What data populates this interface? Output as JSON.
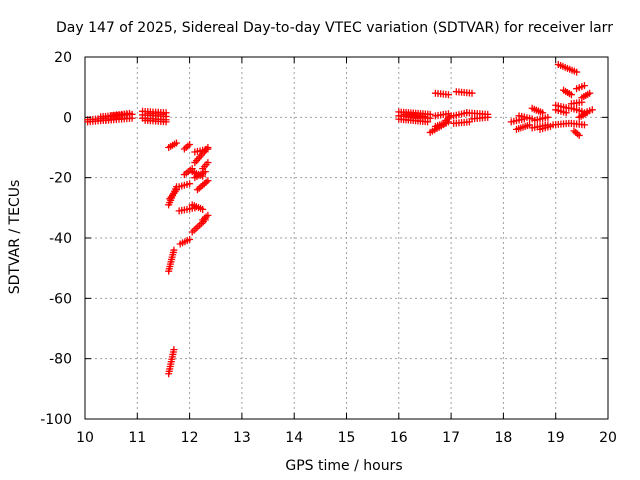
{
  "chart_data": {
    "type": "scatter",
    "title": "Day 147 of 2025, Sidereal Day-to-day VTEC variation (SDTVAR) for receiver larr",
    "xlabel": "GPS time / hours",
    "ylabel": "SDTVAR / TECUs",
    "xlim": [
      10,
      20
    ],
    "ylim": [
      -100,
      20
    ],
    "xticks": [
      10,
      11,
      12,
      13,
      14,
      15,
      16,
      17,
      18,
      19,
      20
    ],
    "yticks": [
      -100,
      -80,
      -60,
      -40,
      -20,
      0,
      20
    ],
    "xtick_labels": [
      "10",
      "11",
      "12",
      "13",
      "14",
      "15",
      "16",
      "17",
      "18",
      "19",
      "20"
    ],
    "ytick_labels": [
      "-100",
      "-80",
      "-60",
      "-40",
      "-20",
      "0",
      "20"
    ],
    "grid": true,
    "marker": "+",
    "color": "#ff0000",
    "segments": [
      {
        "x0": 10.05,
        "x1": 10.4,
        "y0": -0.8,
        "y1": -0.3
      },
      {
        "x0": 10.05,
        "x1": 10.5,
        "y0": -1.5,
        "y1": -0.8
      },
      {
        "x0": 10.3,
        "x1": 10.9,
        "y0": 0.2,
        "y1": 1.0
      },
      {
        "x0": 10.4,
        "x1": 10.9,
        "y0": -1.0,
        "y1": -0.3
      },
      {
        "x0": 10.5,
        "x1": 10.85,
        "y0": 0.6,
        "y1": 1.3
      },
      {
        "x0": 11.1,
        "x1": 11.55,
        "y0": 2.0,
        "y1": 1.5
      },
      {
        "x0": 11.1,
        "x1": 11.55,
        "y0": 0.8,
        "y1": 0.3
      },
      {
        "x0": 11.1,
        "x1": 11.55,
        "y0": -0.3,
        "y1": -0.8
      },
      {
        "x0": 11.15,
        "x1": 11.55,
        "y0": -1.0,
        "y1": -1.5
      },
      {
        "x0": 11.2,
        "x1": 11.5,
        "y0": 1.3,
        "y1": 1.0
      },
      {
        "x0": 11.6,
        "x1": 11.75,
        "y0": -10.0,
        "y1": -8.5
      },
      {
        "x0": 11.6,
        "x1": 11.7,
        "y0": -85.0,
        "y1": -77.0
      },
      {
        "x0": 11.6,
        "x1": 11.7,
        "y0": -51.0,
        "y1": -44.0
      },
      {
        "x0": 11.6,
        "x1": 11.75,
        "y0": -29.0,
        "y1": -23.0
      },
      {
        "x0": 11.62,
        "x1": 11.75,
        "y0": -27.0,
        "y1": -24.0
      },
      {
        "x0": 11.8,
        "x1": 12.0,
        "y0": -23.0,
        "y1": -22.0
      },
      {
        "x0": 11.8,
        "x1": 12.1,
        "y0": -31.0,
        "y1": -30.0
      },
      {
        "x0": 11.82,
        "x1": 12.0,
        "y0": -42.0,
        "y1": -40.5
      },
      {
        "x0": 11.9,
        "x1": 12.0,
        "y0": -10.5,
        "y1": -9.0
      },
      {
        "x0": 11.9,
        "x1": 12.05,
        "y0": -19.0,
        "y1": -17.0
      },
      {
        "x0": 12.05,
        "x1": 12.25,
        "y0": -18.0,
        "y1": -19.5
      },
      {
        "x0": 12.05,
        "x1": 12.25,
        "y0": -29.0,
        "y1": -30.5
      },
      {
        "x0": 12.05,
        "x1": 12.3,
        "y0": -38.0,
        "y1": -34.0
      },
      {
        "x0": 12.1,
        "x1": 12.35,
        "y0": -11.5,
        "y1": -10.5
      },
      {
        "x0": 12.1,
        "x1": 12.35,
        "y0": -15.0,
        "y1": -10.0
      },
      {
        "x0": 12.1,
        "x1": 12.3,
        "y0": -20.0,
        "y1": -18.0
      },
      {
        "x0": 12.15,
        "x1": 12.35,
        "y0": -24.0,
        "y1": -21.0
      },
      {
        "x0": 12.25,
        "x1": 12.35,
        "y0": -34.0,
        "y1": -32.5
      },
      {
        "x0": 12.25,
        "x1": 12.35,
        "y0": -17.0,
        "y1": -15.0
      },
      {
        "x0": 16.0,
        "x1": 16.6,
        "y0": 1.8,
        "y1": 1.0
      },
      {
        "x0": 16.0,
        "x1": 16.6,
        "y0": 0.5,
        "y1": -0.3
      },
      {
        "x0": 16.0,
        "x1": 16.55,
        "y0": -0.6,
        "y1": -1.5
      },
      {
        "x0": 16.1,
        "x1": 16.5,
        "y0": 1.0,
        "y1": 0.3
      },
      {
        "x0": 16.6,
        "x1": 16.9,
        "y0": -5.0,
        "y1": -2.0
      },
      {
        "x0": 16.7,
        "x1": 16.95,
        "y0": -3.0,
        "y1": -1.5
      },
      {
        "x0": 16.7,
        "x1": 16.95,
        "y0": 0.5,
        "y1": 1.2
      },
      {
        "x0": 16.7,
        "x1": 16.95,
        "y0": 8.0,
        "y1": 7.5
      },
      {
        "x0": 16.9,
        "x1": 17.0,
        "y0": -1.0,
        "y1": 0.5
      },
      {
        "x0": 17.05,
        "x1": 17.3,
        "y0": 0.5,
        "y1": 1.5
      },
      {
        "x0": 17.05,
        "x1": 17.35,
        "y0": -2.0,
        "y1": -1.5
      },
      {
        "x0": 17.1,
        "x1": 17.4,
        "y0": 8.5,
        "y1": 8.0
      },
      {
        "x0": 17.3,
        "x1": 17.7,
        "y0": 1.5,
        "y1": 1.0
      },
      {
        "x0": 17.4,
        "x1": 17.7,
        "y0": -0.5,
        "y1": 0.0
      },
      {
        "x0": 18.15,
        "x1": 18.4,
        "y0": -1.5,
        "y1": -0.5
      },
      {
        "x0": 18.25,
        "x1": 18.5,
        "y0": -4.0,
        "y1": -2.5
      },
      {
        "x0": 18.3,
        "x1": 18.55,
        "y0": 0.5,
        "y1": -0.5
      },
      {
        "x0": 18.55,
        "x1": 18.75,
        "y0": 3.0,
        "y1": 1.5
      },
      {
        "x0": 18.55,
        "x1": 18.85,
        "y0": -3.5,
        "y1": -2.5
      },
      {
        "x0": 18.6,
        "x1": 18.85,
        "y0": -1.0,
        "y1": 0.0
      },
      {
        "x0": 18.7,
        "x1": 18.9,
        "y0": -4.0,
        "y1": -3.0
      },
      {
        "x0": 18.95,
        "x1": 19.25,
        "y0": -2.5,
        "y1": -2.0
      },
      {
        "x0": 19.0,
        "x1": 19.2,
        "y0": 2.5,
        "y1": 1.5
      },
      {
        "x0": 19.0,
        "x1": 19.25,
        "y0": 4.0,
        "y1": 3.0
      },
      {
        "x0": 19.05,
        "x1": 19.4,
        "y0": 17.5,
        "y1": 15.0
      },
      {
        "x0": 19.15,
        "x1": 19.3,
        "y0": 9.0,
        "y1": 7.5
      },
      {
        "x0": 19.3,
        "x1": 19.55,
        "y0": -2.0,
        "y1": -2.5
      },
      {
        "x0": 19.3,
        "x1": 19.5,
        "y0": 3.0,
        "y1": 2.0
      },
      {
        "x0": 19.3,
        "x1": 19.5,
        "y0": 4.5,
        "y1": 5.0
      },
      {
        "x0": 19.35,
        "x1": 19.45,
        "y0": -4.5,
        "y1": -6.0
      },
      {
        "x0": 19.4,
        "x1": 19.55,
        "y0": 9.5,
        "y1": 10.5
      },
      {
        "x0": 19.45,
        "x1": 19.6,
        "y0": 0.0,
        "y1": 1.5
      },
      {
        "x0": 19.5,
        "x1": 19.65,
        "y0": 6.5,
        "y1": 8.0
      },
      {
        "x0": 19.55,
        "x1": 19.7,
        "y0": 1.5,
        "y1": 2.5
      }
    ]
  }
}
